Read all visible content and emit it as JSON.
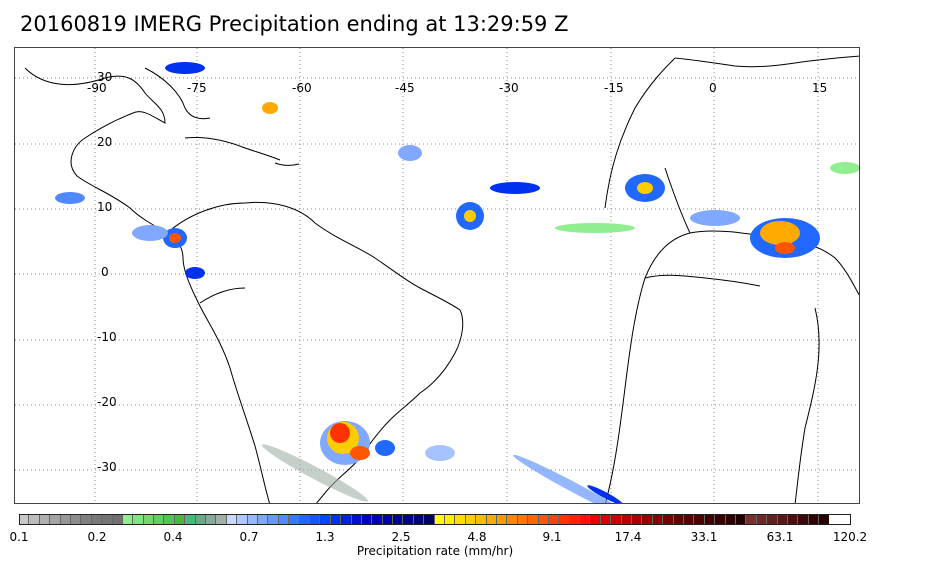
{
  "title": "20160819 IMERG Precipitation ending at 13:29:59 Z",
  "map": {
    "longitude_labels": [
      "-90",
      "-75",
      "-60",
      "-45",
      "-30",
      "-15",
      "0",
      "15"
    ],
    "latitude_labels": [
      "30",
      "20",
      "10",
      "0",
      "-10",
      "-20",
      "-30"
    ],
    "gridlines": "dotted",
    "coastline_color": "#000000"
  },
  "colorbar": {
    "title": "Precipitation rate (mm/hr)",
    "tick_labels": [
      "0.1",
      "0.2",
      "0.4",
      "0.7",
      "1.3",
      "2.5",
      "4.8",
      "9.1",
      "17.4",
      "33.1",
      "63.1",
      "120.2"
    ],
    "colors": [
      "#c8c8c8",
      "#bcbcbc",
      "#b0b0b0",
      "#a4a4a4",
      "#989898",
      "#8c8c8c",
      "#808080",
      "#787878",
      "#747474",
      "#707070",
      "#90ee90",
      "#80e480",
      "#70da70",
      "#60d060",
      "#50c650",
      "#40bc40",
      "#44bb77",
      "#66aa88",
      "#88a899",
      "#a0b0a8",
      "#c8d8ff",
      "#b0c8ff",
      "#98b8ff",
      "#80a8ff",
      "#6898ff",
      "#5088ff",
      "#3878ff",
      "#2068ff",
      "#1058ff",
      "#0048ff",
      "#0030f0",
      "#0020e0",
      "#0010d0",
      "#0000c8",
      "#0000b8",
      "#0000a8",
      "#000098",
      "#000088",
      "#000078",
      "#000068",
      "#ffff00",
      "#ffee00",
      "#ffdd00",
      "#ffcc00",
      "#ffbb00",
      "#ffaa00",
      "#ff9900",
      "#ff8800",
      "#ff7700",
      "#ff6600",
      "#ff5500",
      "#ff4400",
      "#ff3300",
      "#ff2200",
      "#ff1100",
      "#ee0000",
      "#dd0000",
      "#cc0000",
      "#bb0000",
      "#aa0000",
      "#990000",
      "#880000",
      "#770000",
      "#660000",
      "#550000",
      "#4a0000",
      "#400000",
      "#360000",
      "#2c0000",
      "#220000",
      "#7a3030",
      "#6e2828",
      "#622020",
      "#561818",
      "#4a1010",
      "#3e0808",
      "#320000",
      "#280000"
    ]
  }
}
